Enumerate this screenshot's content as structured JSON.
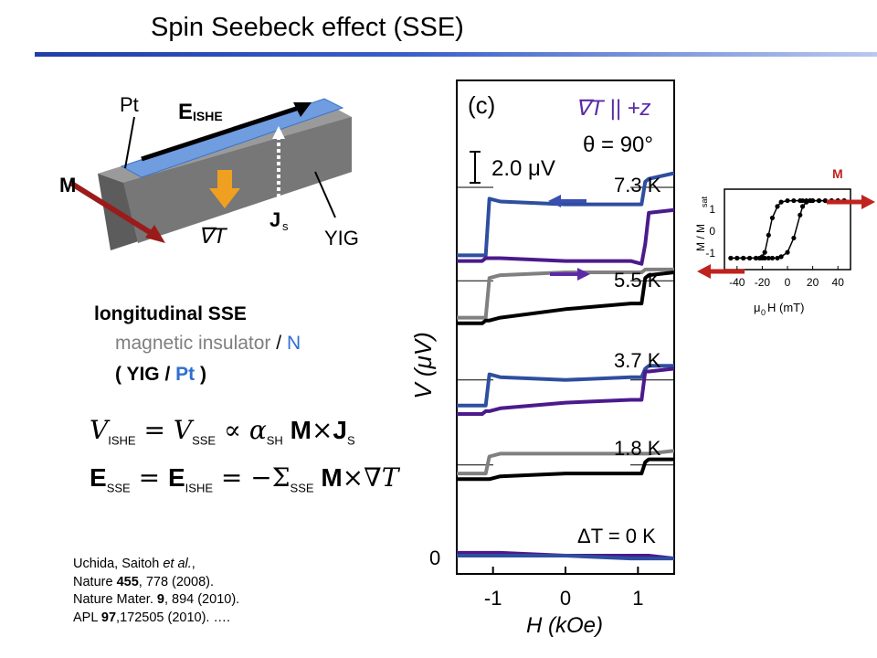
{
  "slide": {
    "title": "Spin Seebeck effect (SSE)"
  },
  "schematic": {
    "pt_label": "Pt",
    "e_label": "E",
    "e_sub": "ISHE",
    "m_label": "M",
    "grad_label": "∇T",
    "js_label": "J",
    "js_sub": "s",
    "yig_label": "YIG"
  },
  "text": {
    "longitudinal": "longitudinal SSE",
    "mag_insulator": "magnetic insulator",
    "slash": " / ",
    "n": "N",
    "yig_pt_open": "( YIG / ",
    "yig_pt_pt": "Pt",
    "yig_pt_close": " )"
  },
  "equations": {
    "eq1_v": "V",
    "eq1_ishe": "ISHE",
    "eq1_eq": " = ",
    "eq1_v2": "V",
    "eq1_sse": "SSE",
    "eq1_prop": " ∝ ",
    "eq1_alpha": "α",
    "eq1_sh": "SH",
    "eq1_m": " M",
    "eq1_times": "×",
    "eq1_j": "J",
    "eq1_s": "S",
    "eq2_e": "E",
    "eq2_sse": "SSE",
    "eq2_eq": " = ",
    "eq2_e2": "E",
    "eq2_ishe": "ISHE",
    "eq2_eq2": " = −",
    "eq2_sigma": "Σ",
    "eq2_sse2": "SSE",
    "eq2_m": " M",
    "eq2_times": "×",
    "eq2_grad": "∇",
    "eq2_t": "T"
  },
  "references": {
    "line1_a": "Uchida, Saitoh ",
    "line1_b": "et al.",
    "line1_c": ",",
    "line2_a": "Nature ",
    "line2_b": "455",
    "line2_c": ", 778 (2008).",
    "line3_a": "Nature Mater. ",
    "line3_b": "9",
    "line3_c": ", 894 (2010).",
    "line4_a": "APL ",
    "line4_b": "97",
    "line4_c": ",172505 (2010).  …."
  },
  "main_plot": {
    "panel": "(c)",
    "condition1": "∇T || +z",
    "condition2": "θ = 90°",
    "scale_bar": "2.0 μV",
    "ylabel": "V (μV)",
    "y_zero": "0",
    "xlabel": "H (kOe)",
    "xticks": [
      "-1",
      "0",
      "1"
    ],
    "temps": [
      "7.3 K",
      "5.5 K",
      "3.7 K",
      "1.8 K",
      "ΔT = 0 K"
    ],
    "colors": {
      "sweep_up_blue": "#2e4ea0",
      "sweep_down_purple": "#4b1a8c",
      "gray": "#808080",
      "black": "#000000",
      "arrow_blue": "#3b4fb0",
      "arrow_purple": "#5b2aa8"
    }
  },
  "chart_data": {
    "type": "line",
    "title": "",
    "xlabel": "H (kOe)",
    "ylabel": "V (μV)",
    "xlim": [
      -1.5,
      1.5
    ],
    "scale_bar_uV": 2.0,
    "x": [
      -1.5,
      -1.15,
      -1.1,
      -1.05,
      -0.9,
      0,
      0.9,
      1.05,
      1.1,
      1.15,
      1.5
    ],
    "series": [
      {
        "name": "7.3 K",
        "baseline": 13.0,
        "sweep_up": [
          -2.4,
          -2.4,
          -2.4,
          -0.4,
          -0.5,
          -0.6,
          -0.6,
          -0.6,
          0.2,
          0.3,
          0.5
        ],
        "sweep_down": [
          -2.6,
          -2.6,
          -2.5,
          -2.5,
          -2.5,
          -2.6,
          -2.6,
          -2.7,
          -2.0,
          -0.9,
          -0.8
        ]
      },
      {
        "name": "5.5 K",
        "baseline": 9.7,
        "sweep_up": [
          -1.3,
          -1.3,
          -1.3,
          0.1,
          0.2,
          0.3,
          0.3,
          0.3,
          0.4,
          0.4,
          0.4
        ],
        "sweep_down": [
          -1.5,
          -1.5,
          -1.4,
          -1.4,
          -1.3,
          -1.0,
          -0.8,
          -0.8,
          0.1,
          0.2,
          0.3
        ]
      },
      {
        "name": "3.7 K",
        "baseline": 6.2,
        "sweep_up": [
          -0.9,
          -0.9,
          -0.9,
          0.2,
          0.1,
          0.0,
          0.1,
          0.1,
          0.4,
          0.5,
          0.5
        ],
        "sweep_down": [
          -1.2,
          -1.2,
          -1.1,
          -1.1,
          -1.0,
          -0.8,
          -0.7,
          -0.7,
          0.3,
          0.3,
          0.4
        ]
      },
      {
        "name": "1.8 K",
        "baseline": 3.2,
        "sweep_up": [
          -0.3,
          -0.3,
          -0.3,
          0.3,
          0.4,
          0.4,
          0.4,
          0.4,
          0.4,
          0.4,
          0.5
        ],
        "sweep_down": [
          -0.5,
          -0.5,
          -0.5,
          -0.5,
          -0.4,
          -0.3,
          -0.3,
          -0.3,
          0.1,
          0.2,
          0.2
        ]
      },
      {
        "name": "ΔT = 0 K",
        "baseline": 0.0,
        "sweep_up": [
          0.1,
          0.1,
          0.1,
          0.1,
          0.1,
          0.0,
          0.0,
          0.0,
          0.0,
          0.0,
          -0.1
        ],
        "sweep_down": [
          0.0,
          0.0,
          0.0,
          0.0,
          0.0,
          0.0,
          -0.1,
          -0.1,
          -0.1,
          -0.1,
          -0.1
        ]
      }
    ]
  },
  "inset": {
    "m_label": "M",
    "ylabel": "M / M",
    "ylabel_sub": "sat",
    "xlabel": "μ",
    "xlabel_sub": "0",
    "xlabel_rest": "H (mT)",
    "xticks": [
      "-40",
      "-20",
      "0",
      "20",
      "40"
    ],
    "yticks": [
      "1",
      "0",
      "-1"
    ],
    "chart_data": {
      "type": "scatter",
      "xlabel": "μ0H (mT)",
      "ylabel": "M / Msat",
      "xlim": [
        -50,
        50
      ],
      "ylim": [
        -1.4,
        1.4
      ],
      "x": [
        -45,
        -40,
        -35,
        -30,
        -25,
        -22,
        -20,
        -18,
        -15,
        -12,
        -8,
        -5,
        0,
        5,
        10,
        12,
        15,
        18,
        20,
        25,
        30,
        35,
        40,
        45
      ],
      "y_down": [
        -1,
        -1,
        -1,
        -1,
        -1,
        -1,
        -0.95,
        -0.8,
        -0.2,
        0.4,
        0.8,
        0.95,
        1,
        1,
        1,
        1,
        1,
        1,
        1,
        1,
        1,
        1,
        1,
        1
      ],
      "y_up": [
        -1,
        -1,
        -1,
        -1,
        -1,
        -1,
        -1,
        -1,
        -1,
        -1,
        -1,
        -0.95,
        -0.8,
        -0.3,
        0.5,
        0.8,
        0.95,
        1,
        1,
        1,
        1,
        1,
        1,
        1
      ]
    }
  }
}
